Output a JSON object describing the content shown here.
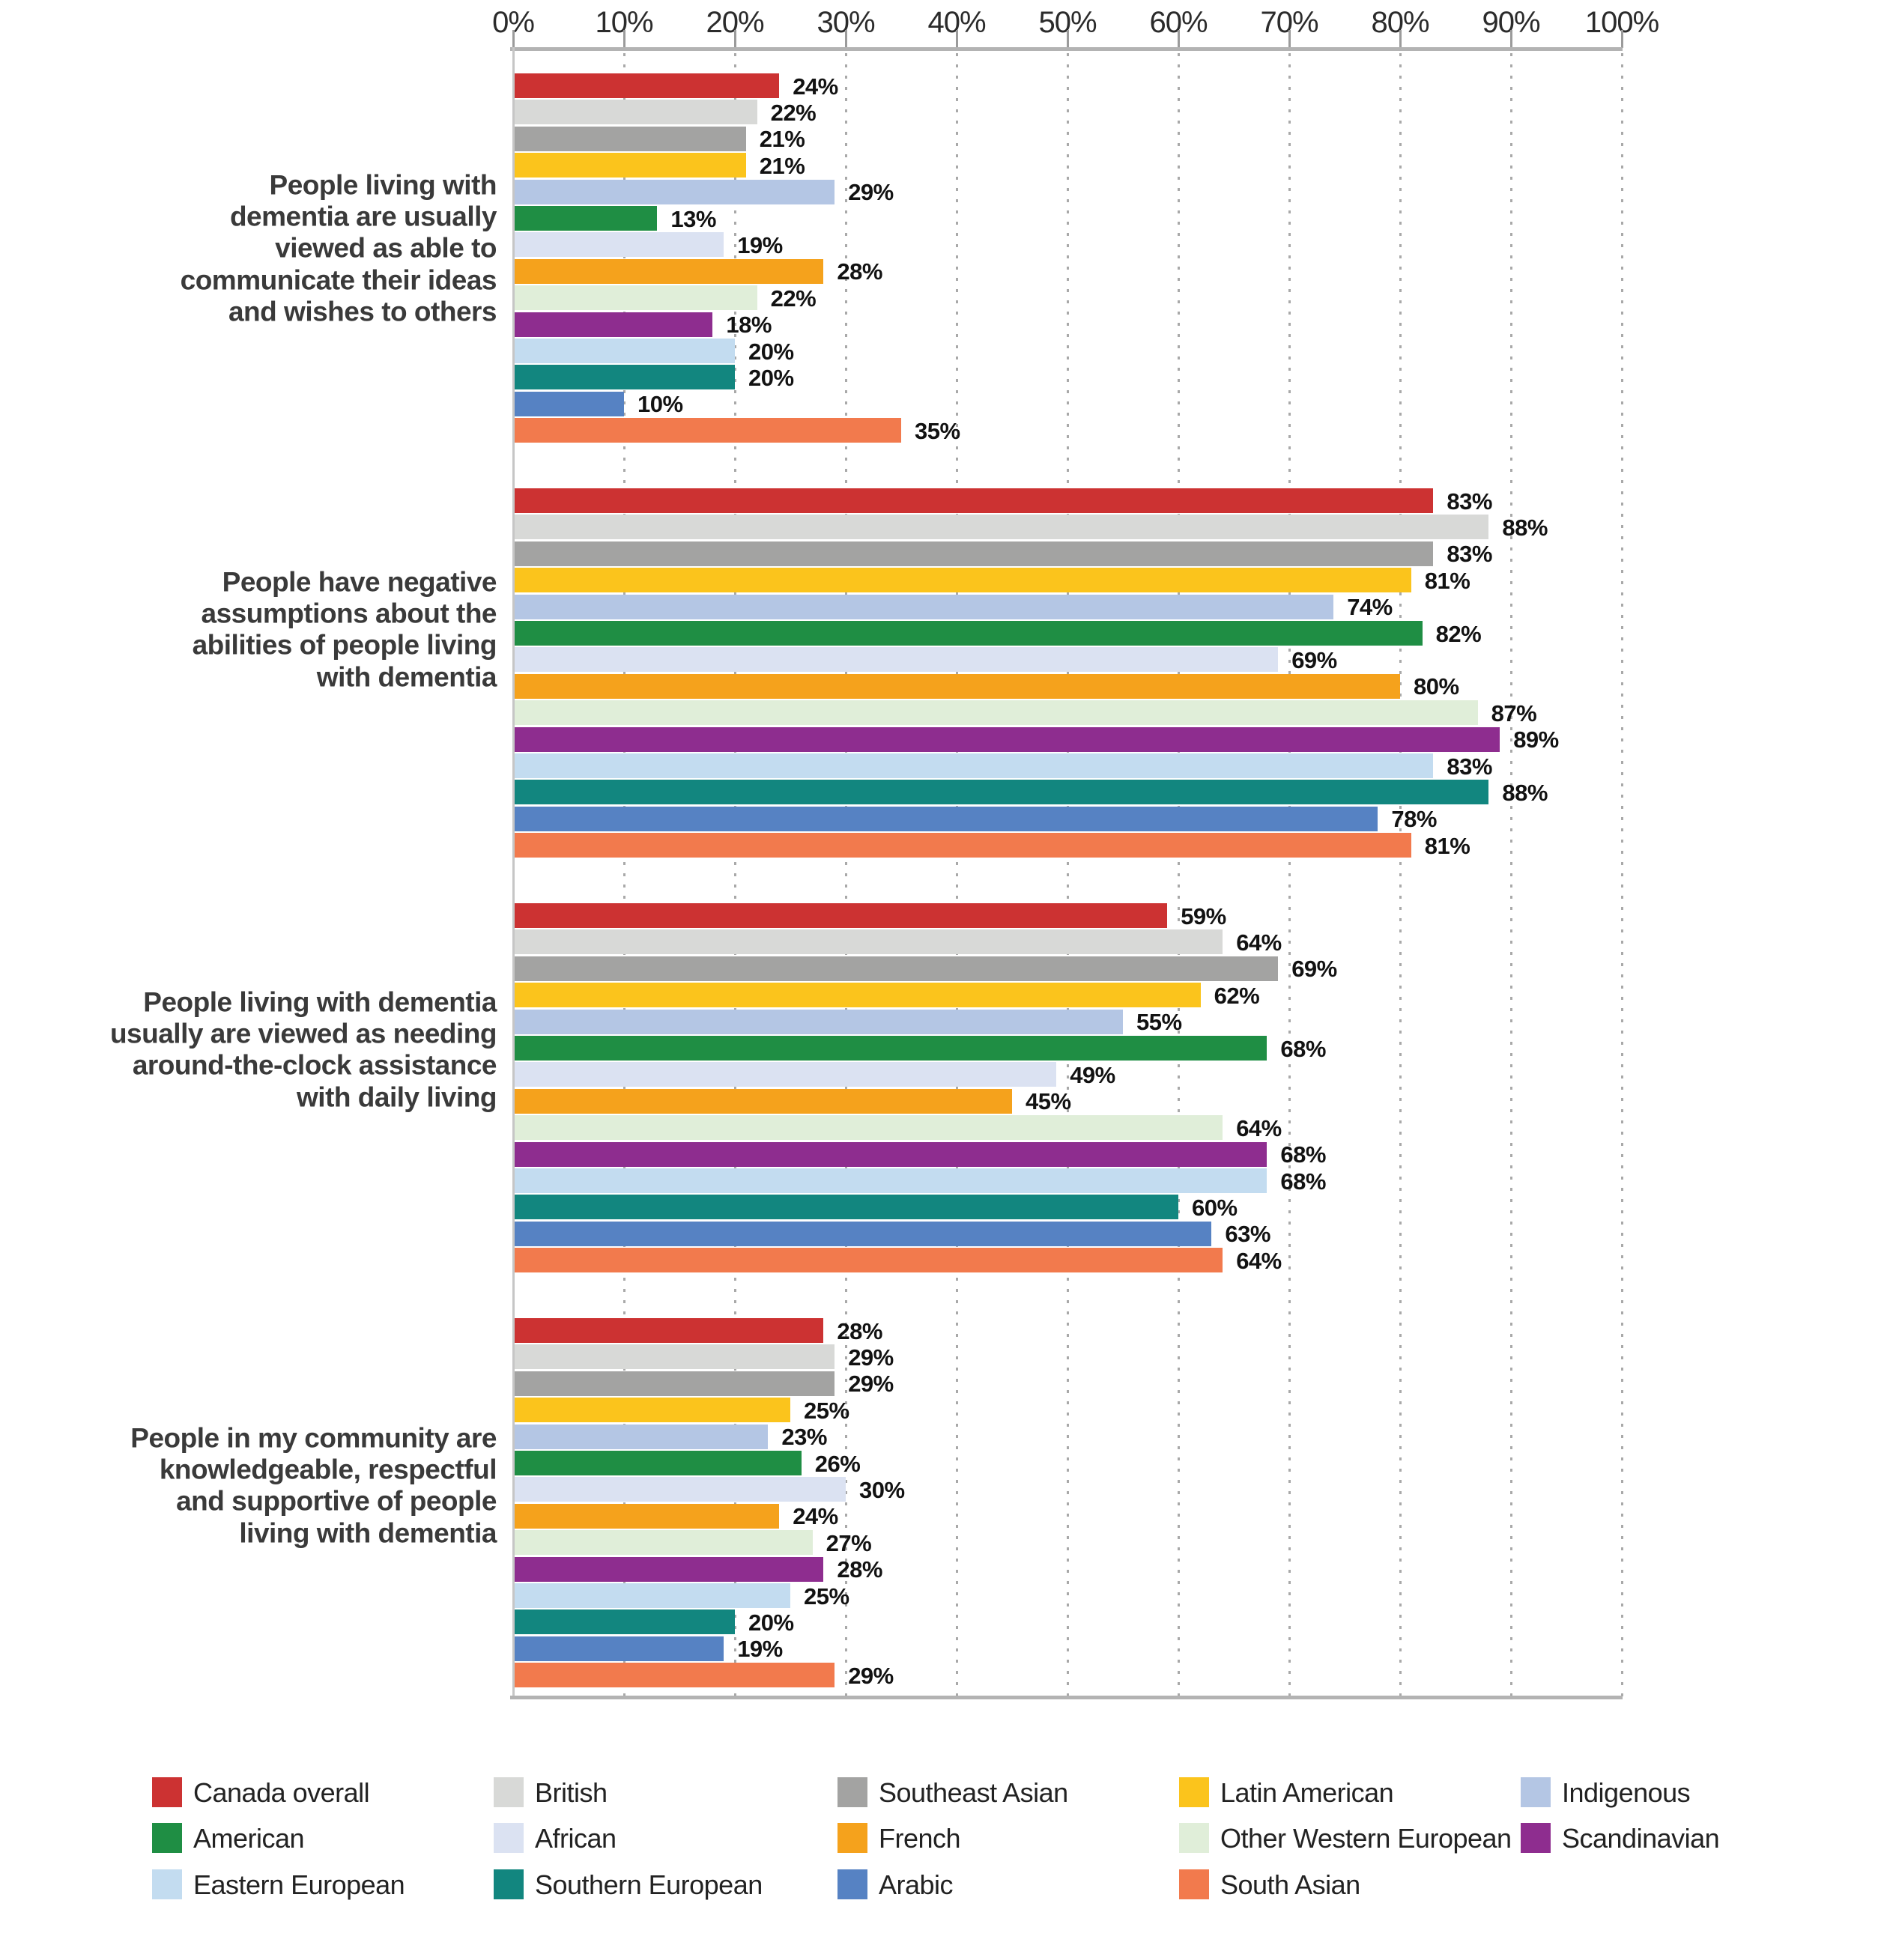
{
  "chart_data": {
    "type": "bar",
    "orientation": "horizontal",
    "title": "",
    "value_suffix": "%",
    "x_axis": {
      "range": [
        0,
        100
      ],
      "ticks": [
        "0%",
        "10%",
        "20%",
        "30%",
        "40%",
        "50%",
        "60%",
        "70%",
        "80%",
        "90%",
        "100%"
      ],
      "grid": "dotted-vertical",
      "position": "top"
    },
    "legend_position": "bottom",
    "categories": [
      {
        "label": "People living with dementia are usually viewed as able to communicate their ideas and wishes to others",
        "lines": [
          "People living with",
          "dementia are usually",
          "viewed as able to",
          "communicate their ideas",
          "and wishes to others"
        ]
      },
      {
        "label": "People have negative assumptions about the abilities of people living with dementia",
        "lines": [
          "People have negative",
          "assumptions about the",
          "abilities of people living",
          "with dementia"
        ]
      },
      {
        "label": "People living with dementia usually are viewed as needing around-the-clock assistance with daily living",
        "lines": [
          "People living with dementia",
          "usually are viewed as needing",
          "around-the-clock assistance",
          "with daily living"
        ]
      },
      {
        "label": "People in my community are knowledgeable, respectful and supportive of people living with dementia",
        "lines": [
          "People in my community are",
          "knowledgeable, respectful",
          "and supportive of people",
          "living with dementia"
        ]
      }
    ],
    "series": [
      {
        "name": "Canada overall",
        "color": "#cc3232",
        "values": [
          24,
          83,
          59,
          28
        ]
      },
      {
        "name": "British",
        "color": "#d8d9d7",
        "values": [
          22,
          88,
          64,
          29
        ]
      },
      {
        "name": "Southeast Asian",
        "color": "#a3a3a2",
        "values": [
          21,
          83,
          69,
          29
        ]
      },
      {
        "name": "Latin American",
        "color": "#fbc41c",
        "values": [
          21,
          81,
          62,
          25
        ]
      },
      {
        "name": "Indigenous",
        "color": "#b4c6e4",
        "values": [
          29,
          74,
          55,
          23
        ]
      },
      {
        "name": "American",
        "color": "#1f8e44",
        "values": [
          13,
          82,
          68,
          26
        ]
      },
      {
        "name": "African",
        "color": "#dbe2f2",
        "values": [
          19,
          69,
          49,
          30
        ]
      },
      {
        "name": "French",
        "color": "#f5a21c",
        "values": [
          28,
          80,
          45,
          24
        ]
      },
      {
        "name": "Other Western European",
        "color": "#e0eed9",
        "values": [
          22,
          87,
          64,
          27
        ]
      },
      {
        "name": "Scandinavian",
        "color": "#8e2d8f",
        "values": [
          18,
          89,
          68,
          28
        ]
      },
      {
        "name": "Eastern European",
        "color": "#c3dcf0",
        "values": [
          20,
          83,
          68,
          25
        ]
      },
      {
        "name": "Southern European",
        "color": "#12867f",
        "values": [
          20,
          88,
          60,
          20
        ]
      },
      {
        "name": "Arabic",
        "color": "#5682c3",
        "values": [
          10,
          78,
          63,
          19
        ]
      },
      {
        "name": "South Asian",
        "color": "#f27a4d",
        "values": [
          35,
          81,
          64,
          29
        ]
      }
    ]
  }
}
